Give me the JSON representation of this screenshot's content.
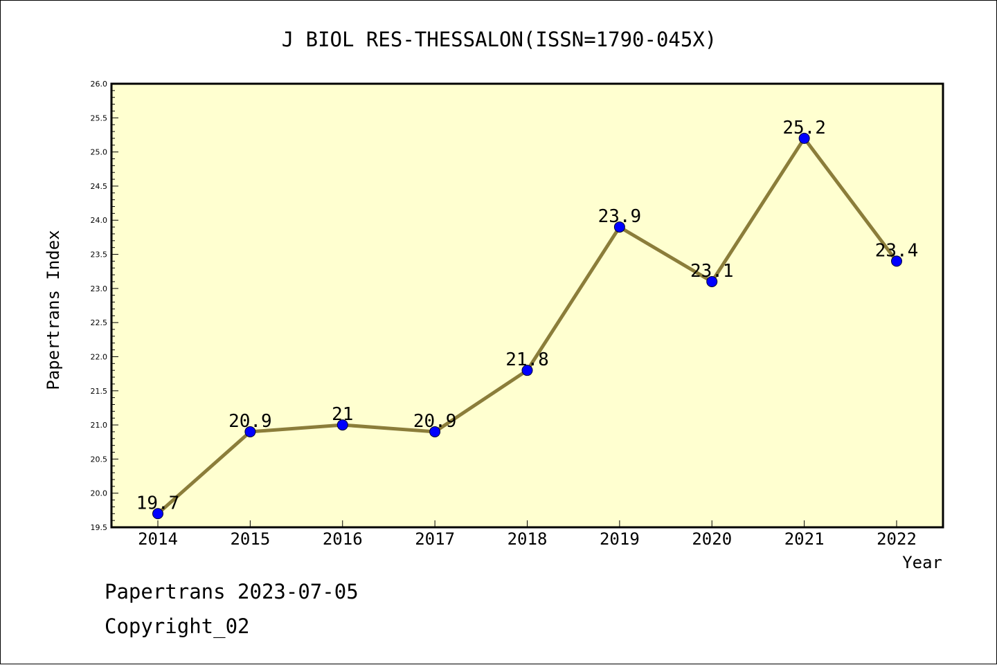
{
  "chart_data": {
    "type": "line",
    "title": "J BIOL RES-THESSALON(ISSN=1790-045X)",
    "xlabel": "Year",
    "ylabel": "Papertrans Index",
    "categories": [
      "2014",
      "2015",
      "2016",
      "2017",
      "2018",
      "2019",
      "2020",
      "2021",
      "2022"
    ],
    "series": [
      {
        "values": [
          19.7,
          20.9,
          21,
          20.9,
          21.8,
          23.9,
          23.1,
          25.2,
          23.4
        ],
        "labels": [
          "19.7",
          "20.9",
          "21",
          "20.9",
          "21.8",
          "23.9",
          "23.1",
          "25.2",
          "23.4"
        ],
        "line_color": "#8b7d3a",
        "marker_color": "#0000ff"
      }
    ],
    "ylim": [
      19.5,
      26.0
    ],
    "y_major_ticks": [
      "19.5",
      "20.0",
      "20.5",
      "21.0",
      "21.5",
      "22.0",
      "22.5",
      "23.0",
      "23.5",
      "24.0",
      "24.5",
      "25.0",
      "25.5",
      "26.0"
    ],
    "plot_background": "#ffffd0",
    "grid": false,
    "footer_lines": [
      "Papertrans 2023-07-05",
      "Copyright_02"
    ]
  }
}
